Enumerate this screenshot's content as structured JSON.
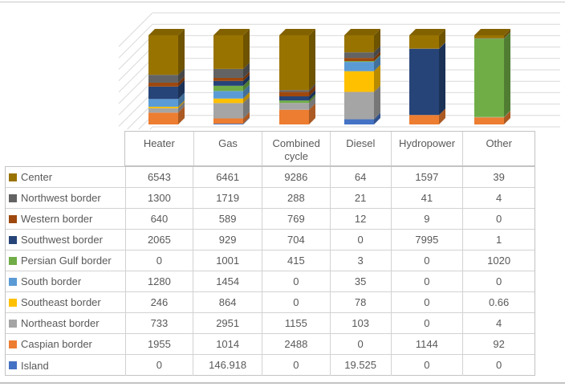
{
  "chart_data": {
    "type": "bar",
    "variant": "3d-column",
    "stacking": "percent",
    "title": "",
    "xlabel": "",
    "ylabel": "",
    "value_axis_labels_visible": false,
    "grid": true,
    "legend_position": "attached-data-table-row-keys",
    "stack_note": "first series listed renders at top of each column; last series at bottom",
    "categories": [
      "Heater",
      "Gas",
      "Combined cycle",
      "Diesel",
      "Hydropower",
      "Other"
    ],
    "series": [
      {
        "name": "Center",
        "color": "#997300",
        "values": [
          6543,
          6461,
          9286,
          64,
          1597,
          39
        ]
      },
      {
        "name": "Northwest border",
        "color": "#636363",
        "values": [
          1300,
          1719,
          288,
          21,
          41,
          4
        ]
      },
      {
        "name": "Western border",
        "color": "#9E480E",
        "values": [
          640,
          589,
          769,
          12,
          9,
          0
        ]
      },
      {
        "name": "Southwest border",
        "color": "#264478",
        "values": [
          2065,
          929,
          704,
          0,
          7995,
          1
        ]
      },
      {
        "name": "Persian Gulf border",
        "color": "#70AD47",
        "values": [
          0,
          1001,
          415,
          3,
          0,
          1020
        ]
      },
      {
        "name": "South border",
        "color": "#5B9BD5",
        "values": [
          1280,
          1454,
          0,
          35,
          0,
          0
        ]
      },
      {
        "name": "Southeast border",
        "color": "#FFC000",
        "values": [
          246,
          864,
          0,
          78,
          0,
          0.66
        ]
      },
      {
        "name": "Northeast border",
        "color": "#A5A5A5",
        "values": [
          733,
          2951,
          1155,
          103,
          0,
          4
        ]
      },
      {
        "name": "Caspian border",
        "color": "#ED7D31",
        "values": [
          1955,
          1014,
          2488,
          0,
          1144,
          92
        ]
      },
      {
        "name": "Island",
        "color": "#4472C4",
        "values": [
          0,
          146.918,
          0,
          19.525,
          0,
          0
        ]
      }
    ]
  },
  "data_table": {
    "column_headers": [
      "Heater",
      "Gas",
      "Combined cycle",
      "Diesel",
      "Hydropower",
      "Other"
    ],
    "row_labels": [
      "Center",
      "Northwest border",
      "Western border",
      "Southwest border",
      "Persian Gulf border",
      "South border",
      "Southeast border",
      "Northeast border",
      "Caspian border",
      "Island"
    ],
    "cell_text": [
      [
        "6543",
        "6461",
        "9286",
        "64",
        "1597",
        "39"
      ],
      [
        "1300",
        "1719",
        "288",
        "21",
        "41",
        "4"
      ],
      [
        "640",
        "589",
        "769",
        "12",
        "9",
        "0"
      ],
      [
        "2065",
        "929",
        "704",
        "0",
        "7995",
        "1"
      ],
      [
        "0",
        "1001",
        "415",
        "3",
        "0",
        "1020"
      ],
      [
        "1280",
        "1454",
        "0",
        "35",
        "0",
        "0"
      ],
      [
        "246",
        "864",
        "0",
        "78",
        "0",
        "0.66"
      ],
      [
        "733",
        "2951",
        "1155",
        "103",
        "0",
        "4"
      ],
      [
        "1955",
        "1014",
        "2488",
        "0",
        "1144",
        "92"
      ],
      [
        "0",
        "146.918",
        "0",
        "19.525",
        "0",
        "0"
      ]
    ]
  },
  "colors": {
    "gridline": "#D9D9D9",
    "table_border": "#C3C3C3",
    "table_inner_border": "#D2D2D2",
    "text": "#595959",
    "frame": "#C9C9C9"
  }
}
